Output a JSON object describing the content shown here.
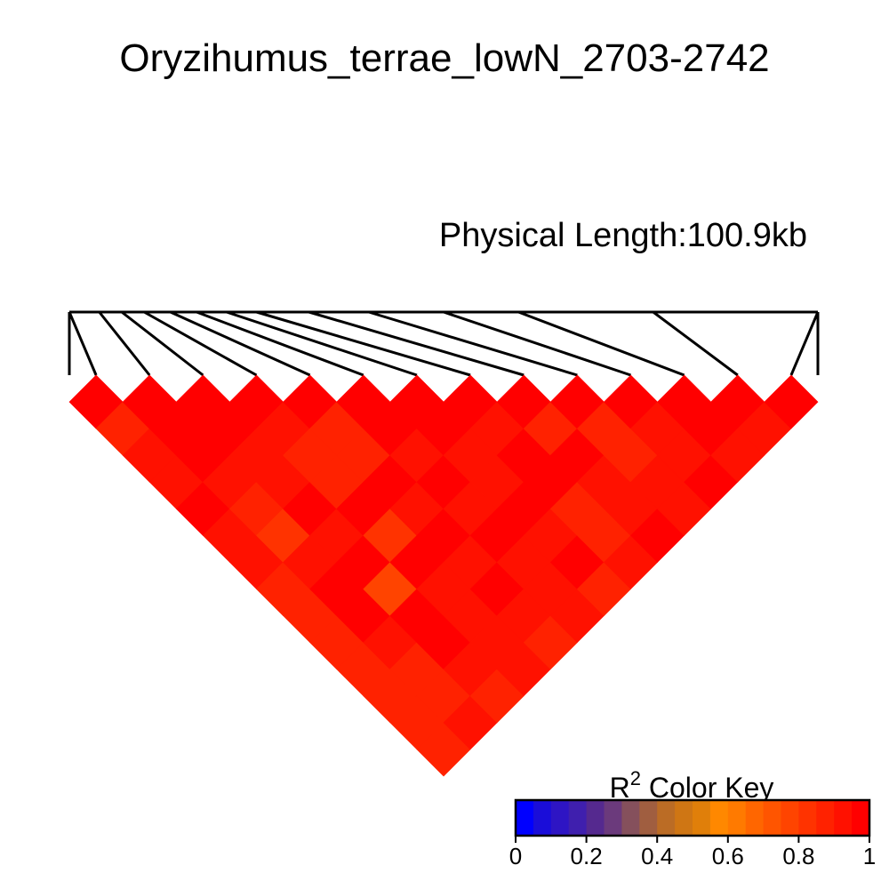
{
  "chart_data": {
    "type": "heatmap",
    "title": "Oryzihumus_terrae_lowN_2703-2742",
    "subtitle": "Physical Length:100.9kb",
    "num_snps": 14,
    "snp_positions_fraction": [
      0.0,
      0.04,
      0.07,
      0.1,
      0.135,
      0.17,
      0.21,
      0.25,
      0.32,
      0.4,
      0.5,
      0.6,
      0.78,
      1.0
    ],
    "r2_matrix": [
      [
        1.0,
        0.88,
        0.93,
        0.92,
        0.96,
        0.9,
        0.92,
        0.86,
        0.86,
        0.88,
        0.86,
        0.88,
        0.88,
        0.86
      ],
      [
        0.88,
        1.0,
        0.95,
        0.97,
        0.92,
        0.88,
        0.83,
        0.93,
        0.95,
        0.95,
        0.9,
        0.86,
        0.88,
        0.9
      ],
      [
        0.93,
        0.95,
        1.0,
        0.97,
        0.93,
        0.92,
        0.98,
        0.92,
        0.97,
        0.78,
        0.98,
        0.95,
        0.9,
        0.88
      ],
      [
        0.92,
        0.97,
        0.97,
        1.0,
        0.93,
        0.86,
        0.86,
        0.95,
        0.82,
        0.95,
        0.93,
        0.9,
        0.93,
        0.9
      ],
      [
        0.96,
        0.92,
        0.93,
        0.93,
        1.0,
        0.86,
        0.86,
        0.96,
        0.93,
        0.96,
        0.92,
        0.96,
        0.9,
        0.88
      ],
      [
        0.9,
        0.88,
        0.92,
        0.86,
        0.86,
        1.0,
        0.95,
        0.93,
        0.97,
        0.92,
        0.97,
        0.9,
        0.92,
        0.9
      ],
      [
        0.92,
        0.83,
        0.98,
        0.86,
        0.86,
        0.95,
        1.0,
        0.96,
        0.92,
        0.93,
        0.95,
        0.93,
        0.96,
        0.88
      ],
      [
        0.86,
        0.93,
        0.92,
        0.95,
        0.96,
        0.93,
        0.96,
        1.0,
        0.93,
        0.97,
        0.96,
        0.86,
        0.88,
        0.92
      ],
      [
        0.86,
        0.95,
        0.97,
        0.82,
        0.93,
        0.97,
        0.92,
        0.93,
        1.0,
        0.86,
        0.95,
        0.9,
        0.93,
        0.96
      ],
      [
        0.88,
        0.95,
        0.78,
        0.95,
        0.96,
        0.92,
        0.93,
        0.97,
        0.86,
        1.0,
        0.88,
        0.86,
        0.9,
        0.93
      ],
      [
        0.86,
        0.9,
        0.98,
        0.93,
        0.92,
        0.97,
        0.95,
        0.96,
        0.95,
        0.88,
        1.0,
        0.9,
        0.92,
        0.95
      ],
      [
        0.88,
        0.86,
        0.95,
        0.9,
        0.96,
        0.9,
        0.93,
        0.86,
        0.9,
        0.86,
        0.9,
        1.0,
        0.95,
        0.92
      ],
      [
        0.88,
        0.88,
        0.9,
        0.93,
        0.9,
        0.92,
        0.96,
        0.88,
        0.93,
        0.9,
        0.92,
        0.95,
        1.0,
        0.92
      ],
      [
        0.86,
        0.9,
        0.88,
        0.9,
        0.88,
        0.9,
        0.88,
        0.92,
        0.96,
        0.93,
        0.95,
        0.92,
        0.92,
        1.0
      ]
    ],
    "color_key": {
      "title_base": "R",
      "title_sup": "2",
      "title_rest": " Color Key",
      "range": [
        0,
        1
      ],
      "ticks": [
        "0",
        "0.2",
        "0.4",
        "0.6",
        "0.8",
        "1"
      ],
      "colors": [
        "#0000ff",
        "#1a0dd9",
        "#2e15c4",
        "#3f1fae",
        "#55298f",
        "#6b3a7c",
        "#85505c",
        "#a05e40",
        "#bb6c25",
        "#cf7614",
        "#e07f0a",
        "#ff8800",
        "#ff7a00",
        "#ff6600",
        "#ff5500",
        "#ff4400",
        "#ff3300",
        "#ff2200",
        "#ff1100",
        "#ff0000"
      ]
    }
  }
}
